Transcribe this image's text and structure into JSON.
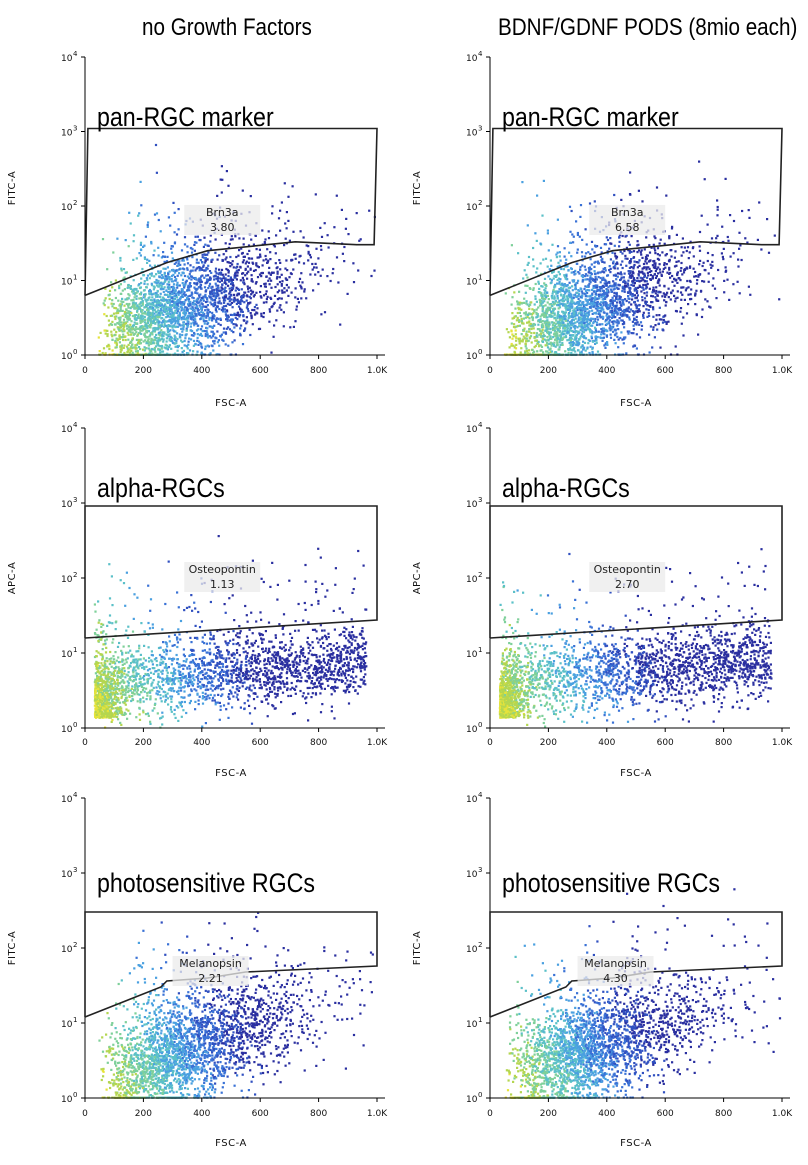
{
  "column_titles": [
    "no Growth Factors",
    "BDNF/GDNF PODS (8mio each)"
  ],
  "chart_data": [
    {
      "type": "scatter",
      "row": 0,
      "col": 0,
      "title": "pan-RGC marker",
      "xlabel": "FSC-A",
      "ylabel": "FITC-A",
      "xlim": [
        0,
        1000
      ],
      "ylim_log10": [
        0,
        4
      ],
      "xticks": [
        "0",
        "200",
        "400",
        "600",
        "800",
        "1.0K"
      ],
      "yticks_exp": [
        "0",
        "1",
        "2",
        "3",
        "4"
      ],
      "gate": {
        "name": "Brn3a",
        "percent": "3.80"
      },
      "density_colormap": "jet-like"
    },
    {
      "type": "scatter",
      "row": 0,
      "col": 1,
      "title": "pan-RGC marker",
      "xlabel": "FSC-A",
      "ylabel": "FITC-A",
      "xlim": [
        0,
        1000
      ],
      "ylim_log10": [
        0,
        4
      ],
      "xticks": [
        "0",
        "200",
        "400",
        "600",
        "800",
        "1.0K"
      ],
      "yticks_exp": [
        "0",
        "1",
        "2",
        "3",
        "4"
      ],
      "gate": {
        "name": "Brn3a",
        "percent": "6.58"
      },
      "density_colormap": "jet-like"
    },
    {
      "type": "scatter",
      "row": 1,
      "col": 0,
      "title": "alpha-RGCs",
      "xlabel": "FSC-A",
      "ylabel": "APC-A",
      "xlim": [
        0,
        1000
      ],
      "ylim_log10": [
        0,
        4
      ],
      "xticks": [
        "0",
        "200",
        "400",
        "600",
        "800",
        "1.0K"
      ],
      "yticks_exp": [
        "0",
        "1",
        "2",
        "3",
        "4"
      ],
      "gate": {
        "name": "Osteopontin",
        "percent": "1.13"
      },
      "density_colormap": "jet-like"
    },
    {
      "type": "scatter",
      "row": 1,
      "col": 1,
      "title": "alpha-RGCs",
      "xlabel": "FSC-A",
      "ylabel": "APC-A",
      "xlim": [
        0,
        1000
      ],
      "ylim_log10": [
        0,
        4
      ],
      "xticks": [
        "0",
        "200",
        "400",
        "600",
        "800",
        "1.0K"
      ],
      "yticks_exp": [
        "0",
        "1",
        "2",
        "3",
        "4"
      ],
      "gate": {
        "name": "Osteopontin",
        "percent": "2.70"
      },
      "density_colormap": "jet-like"
    },
    {
      "type": "scatter",
      "row": 2,
      "col": 0,
      "title": "photosensitive RGCs",
      "xlabel": "FSC-A",
      "ylabel": "FITC-A",
      "xlim": [
        0,
        1000
      ],
      "ylim_log10": [
        0,
        4
      ],
      "xticks": [
        "0",
        "200",
        "400",
        "600",
        "800",
        "1.0K"
      ],
      "yticks_exp": [
        "0",
        "1",
        "2",
        "3",
        "4"
      ],
      "gate": {
        "name": "Melanopsin",
        "percent": "2.21"
      },
      "density_colormap": "jet-like"
    },
    {
      "type": "scatter",
      "row": 2,
      "col": 1,
      "title": "photosensitive RGCs",
      "xlabel": "FSC-A",
      "ylabel": "FITC-A",
      "xlim": [
        0,
        1000
      ],
      "ylim_log10": [
        0,
        4
      ],
      "xticks": [
        "0",
        "200",
        "400",
        "600",
        "800",
        "1.0K"
      ],
      "yticks_exp": [
        "0",
        "1",
        "2",
        "3",
        "4"
      ],
      "gate": {
        "name": "Melanopsin",
        "percent": "4.30"
      },
      "density_colormap": "jet-like"
    }
  ]
}
